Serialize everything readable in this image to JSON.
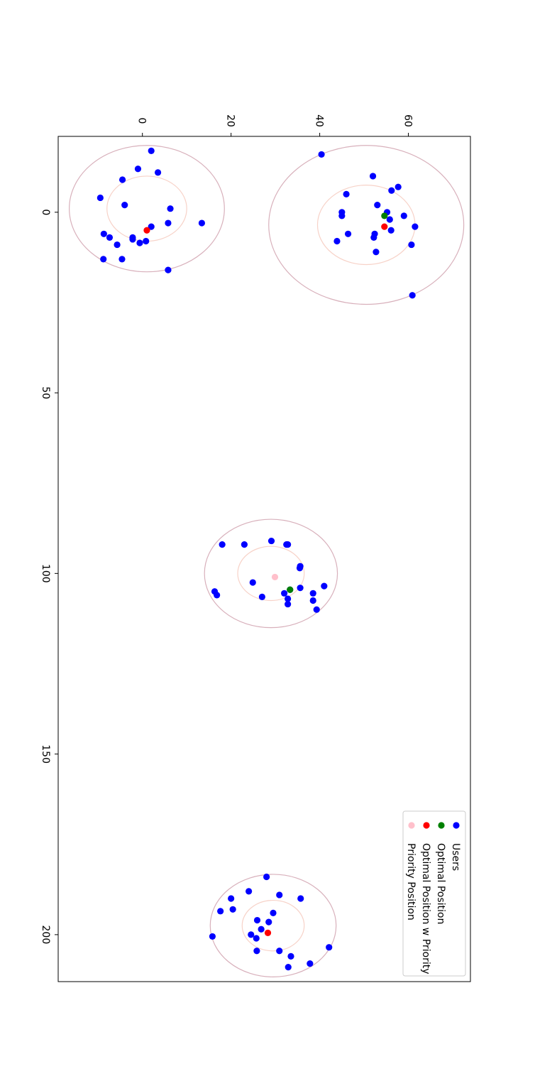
{
  "chart_data": {
    "type": "scatter",
    "title": "",
    "xlabel": "",
    "ylabel": "",
    "xlim": [
      -21,
      213
    ],
    "ylim": [
      -19,
      74
    ],
    "x_ticks": [
      0,
      50,
      100,
      150,
      200
    ],
    "y_ticks": [
      0,
      20,
      40,
      60
    ],
    "x_tick_labels": [
      "0",
      "50",
      "100",
      "150",
      "200"
    ],
    "y_tick_labels": [
      "0",
      "20",
      "40",
      "60"
    ],
    "grid": false,
    "legend_position": "top-right",
    "colors": {
      "users": "#0000ff",
      "optimal": "#008000",
      "optimal_priority": "#ff0000",
      "priority": "#ffc0cb",
      "inner_circle": "#f7d2c8",
      "outer_circle": "#d8b0bb"
    },
    "legend": [
      {
        "label": "Users",
        "series": "users"
      },
      {
        "label": "Optimal Position",
        "series": "optimal"
      },
      {
        "label": "Optimal Position w Priority",
        "series": "optimal_priority"
      },
      {
        "label": "Priority Position",
        "series": "priority"
      }
    ],
    "series": [
      {
        "name": "Users",
        "key": "users",
        "points": [
          [
            -17,
            2.0
          ],
          [
            -12,
            -1.0
          ],
          [
            -11,
            3.5
          ],
          [
            -9,
            -4.5
          ],
          [
            -4,
            -9.5
          ],
          [
            -2,
            -4.0
          ],
          [
            -1,
            6.3
          ],
          [
            3,
            5.8
          ],
          [
            3,
            13.4
          ],
          [
            4,
            2.0
          ],
          [
            6,
            -8.7
          ],
          [
            7,
            -7.4
          ],
          [
            7,
            -2.2
          ],
          [
            7.5,
            -2.2
          ],
          [
            8,
            0.8
          ],
          [
            8.5,
            -0.6
          ],
          [
            9,
            -5.7
          ],
          [
            13,
            -8.8
          ],
          [
            13,
            -4.6
          ],
          [
            16,
            5.8
          ],
          [
            -16,
            40.4
          ],
          [
            -10,
            52.0
          ],
          [
            -7,
            57.7
          ],
          [
            -6,
            56.2
          ],
          [
            -5,
            46.0
          ],
          [
            -2,
            53.0
          ],
          [
            0,
            45.0
          ],
          [
            1,
            45.0
          ],
          [
            0,
            55.2
          ],
          [
            1,
            59.0
          ],
          [
            2,
            55.8
          ],
          [
            4,
            61.5
          ],
          [
            5,
            56.1
          ],
          [
            6,
            46.4
          ],
          [
            6,
            52.4
          ],
          [
            7,
            52.2
          ],
          [
            8,
            43.9
          ],
          [
            9,
            60.7
          ],
          [
            11,
            52.7
          ],
          [
            23,
            60.9
          ],
          [
            91,
            29.1
          ],
          [
            92,
            18.0
          ],
          [
            92,
            23.0
          ],
          [
            92,
            32.5
          ],
          [
            92,
            32.8
          ],
          [
            98,
            35.6
          ],
          [
            98.5,
            35.5
          ],
          [
            102.5,
            24.9
          ],
          [
            103.5,
            41.0
          ],
          [
            104,
            35.6
          ],
          [
            104.5,
            33.3
          ],
          [
            105,
            16.3
          ],
          [
            105.5,
            38.5
          ],
          [
            105.5,
            32.0
          ],
          [
            106,
            16.8
          ],
          [
            106.5,
            27.0
          ],
          [
            107,
            32.8
          ],
          [
            107.5,
            38.5
          ],
          [
            108.5,
            32.8
          ],
          [
            110,
            39.3
          ],
          [
            184,
            28.0
          ],
          [
            189,
            30.9
          ],
          [
            188,
            24.0
          ],
          [
            190,
            20.0
          ],
          [
            190,
            35.7
          ],
          [
            193,
            20.4
          ],
          [
            193.5,
            17.6
          ],
          [
            194,
            29.5
          ],
          [
            196,
            25.9
          ],
          [
            196.5,
            28.5
          ],
          [
            198.5,
            26.8
          ],
          [
            200,
            24.5
          ],
          [
            200.5,
            15.8
          ],
          [
            201,
            25.7
          ],
          [
            203.5,
            42.1
          ],
          [
            204.5,
            25.8
          ],
          [
            204.5,
            30.9
          ],
          [
            206,
            33.5
          ],
          [
            208,
            37.8
          ],
          [
            209,
            32.9
          ]
        ]
      },
      {
        "name": "Optimal Position",
        "key": "optimal",
        "points": [
          [
            1,
            54.6
          ],
          [
            104.5,
            33.3
          ]
        ]
      },
      {
        "name": "Optimal Position w Priority",
        "key": "optimal_priority",
        "points": [
          [
            5,
            1.0
          ],
          [
            4,
            54.6
          ],
          [
            199.5,
            28.3
          ]
        ]
      },
      {
        "name": "Priority Position",
        "key": "priority",
        "points": [
          [
            101,
            29.9
          ]
        ]
      }
    ],
    "circles": [
      {
        "cx": -1,
        "cy": 1.0,
        "r_inner": 9,
        "r_outer": 17.5
      },
      {
        "cx": 3.5,
        "cy": 50.5,
        "r_inner": 11,
        "r_outer": 22
      },
      {
        "cx": 100,
        "cy": 29.0,
        "r_inner": 7.5,
        "r_outer": 15
      },
      {
        "cx": 197.5,
        "cy": 29.5,
        "r_inner": 7,
        "r_outer": 14.2
      }
    ]
  }
}
